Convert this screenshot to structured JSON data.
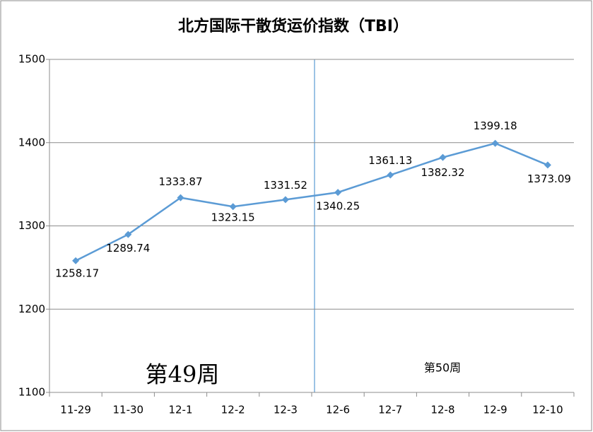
{
  "chart_data": {
    "type": "line",
    "title": "北方国际干散货运价指数（TBI）",
    "categories": [
      "11-29",
      "11-30",
      "12-1",
      "12-2",
      "12-3",
      "12-6",
      "12-7",
      "12-8",
      "12-9",
      "12-10"
    ],
    "values": [
      1258.17,
      1289.74,
      1333.87,
      1323.15,
      1331.52,
      1340.25,
      1361.13,
      1382.32,
      1399.18,
      1373.09
    ],
    "color": "#5b9bd5",
    "ylim": [
      1100,
      1500
    ],
    "yticks": [
      1100,
      1200,
      1300,
      1400,
      1500
    ],
    "grid": true,
    "annotations": [
      "第49周",
      "第50周"
    ]
  }
}
